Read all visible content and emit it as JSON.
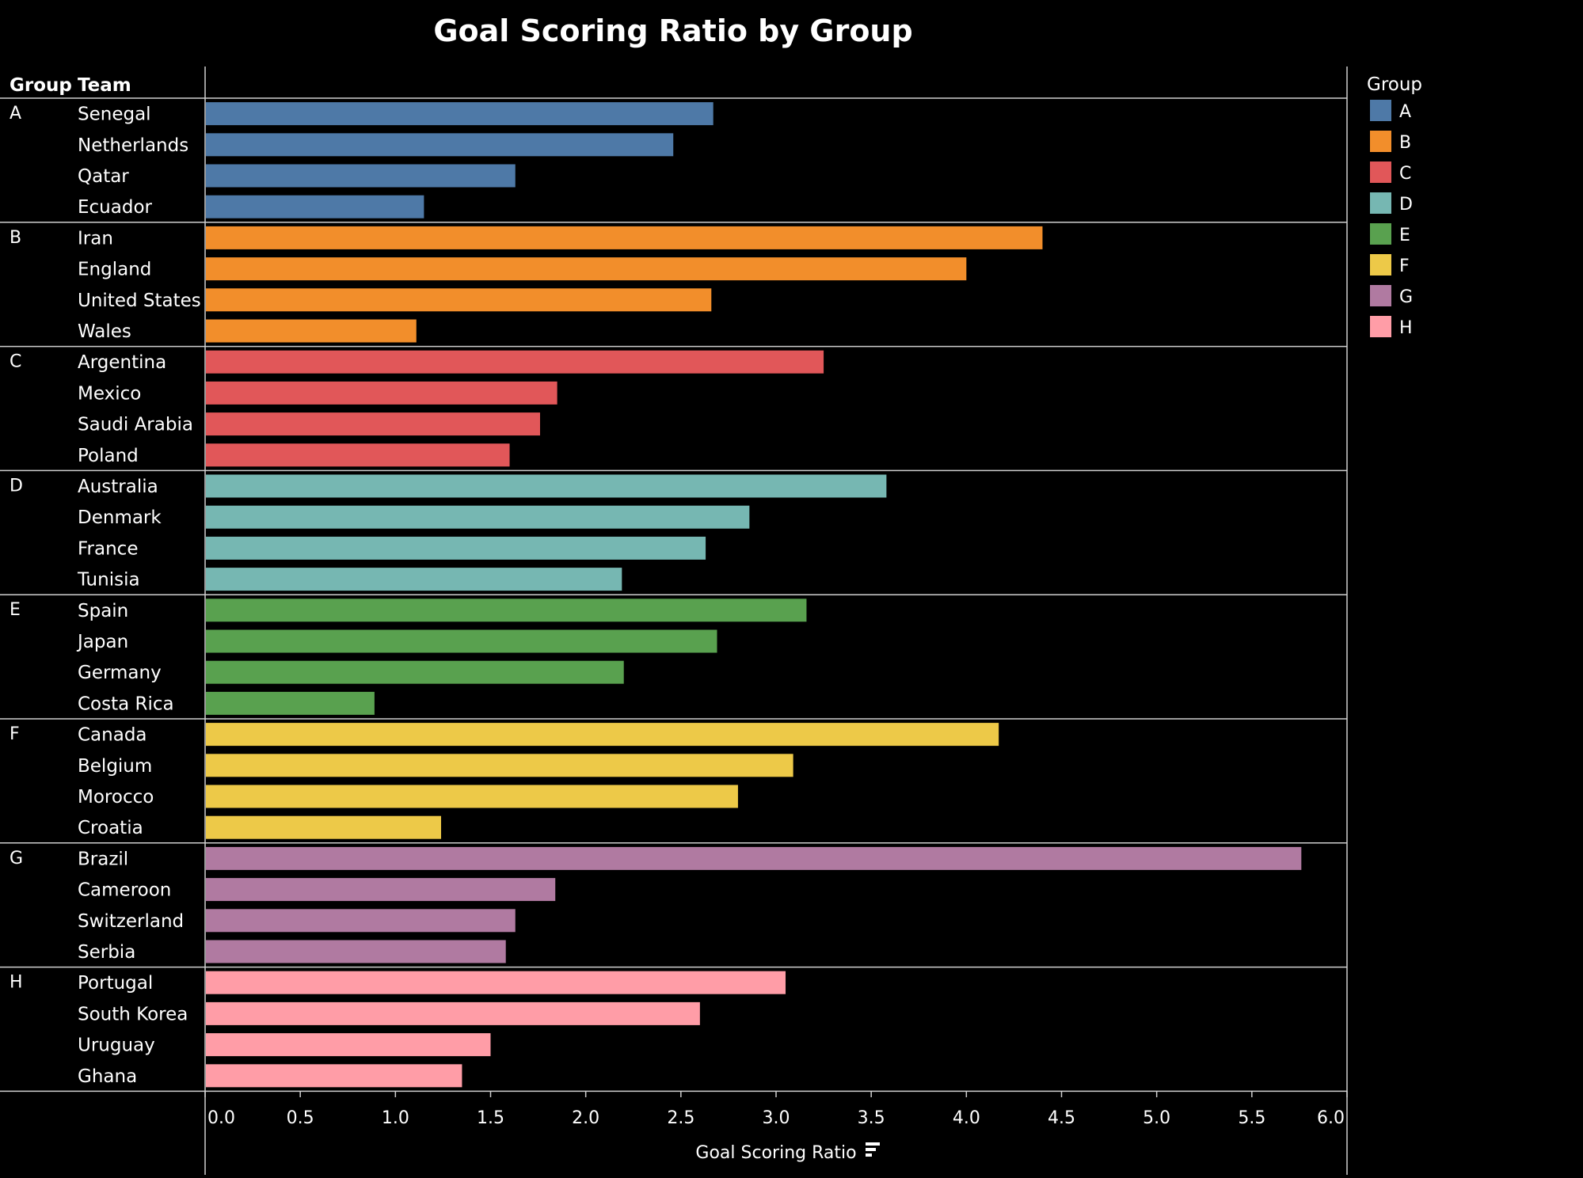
{
  "title": "Goal Scoring Ratio by Group",
  "header": {
    "group_col": "Group",
    "team_col": "Team"
  },
  "legend": {
    "title": "Group",
    "items": [
      {
        "label": "A",
        "color": "#4e79a7"
      },
      {
        "label": "B",
        "color": "#f28e2b"
      },
      {
        "label": "C",
        "color": "#e15759"
      },
      {
        "label": "D",
        "color": "#76b7b2"
      },
      {
        "label": "E",
        "color": "#59a14f"
      },
      {
        "label": "F",
        "color": "#edc948"
      },
      {
        "label": "G",
        "color": "#b07aa1"
      },
      {
        "label": "H",
        "color": "#ff9da7"
      }
    ]
  },
  "chart_data": {
    "type": "bar",
    "orientation": "horizontal",
    "title": "Goal Scoring Ratio by Group",
    "xlabel": "Goal Scoring Ratio",
    "ylabel": "",
    "xlim": [
      0,
      6
    ],
    "xticks": [
      "0.0",
      "0.5",
      "1.0",
      "1.5",
      "2.0",
      "2.5",
      "3.0",
      "3.5",
      "4.0",
      "4.5",
      "5.0",
      "5.5",
      "6.0"
    ],
    "legend_position": "right",
    "grid": false,
    "groups": [
      {
        "name": "A",
        "color": "#4e79a7",
        "teams": [
          {
            "team": "Senegal",
            "value": 2.67
          },
          {
            "team": "Netherlands",
            "value": 2.46
          },
          {
            "team": "Qatar",
            "value": 1.63
          },
          {
            "team": "Ecuador",
            "value": 1.15
          }
        ]
      },
      {
        "name": "B",
        "color": "#f28e2b",
        "teams": [
          {
            "team": "Iran",
            "value": 4.4
          },
          {
            "team": "England",
            "value": 4.0
          },
          {
            "team": "United States",
            "value": 2.66
          },
          {
            "team": "Wales",
            "value": 1.11
          }
        ]
      },
      {
        "name": "C",
        "color": "#e15759",
        "teams": [
          {
            "team": "Argentina",
            "value": 3.25
          },
          {
            "team": "Mexico",
            "value": 1.85
          },
          {
            "team": "Saudi Arabia",
            "value": 1.76
          },
          {
            "team": "Poland",
            "value": 1.6
          }
        ]
      },
      {
        "name": "D",
        "color": "#76b7b2",
        "teams": [
          {
            "team": "Australia",
            "value": 3.58
          },
          {
            "team": "Denmark",
            "value": 2.86
          },
          {
            "team": "France",
            "value": 2.63
          },
          {
            "team": "Tunisia",
            "value": 2.19
          }
        ]
      },
      {
        "name": "E",
        "color": "#59a14f",
        "teams": [
          {
            "team": "Spain",
            "value": 3.16
          },
          {
            "team": "Japan",
            "value": 2.69
          },
          {
            "team": "Germany",
            "value": 2.2
          },
          {
            "team": "Costa Rica",
            "value": 0.89
          }
        ]
      },
      {
        "name": "F",
        "color": "#edc948",
        "teams": [
          {
            "team": "Canada",
            "value": 4.17
          },
          {
            "team": "Belgium",
            "value": 3.09
          },
          {
            "team": "Morocco",
            "value": 2.8
          },
          {
            "team": "Croatia",
            "value": 1.24
          }
        ]
      },
      {
        "name": "G",
        "color": "#b07aa1",
        "teams": [
          {
            "team": "Brazil",
            "value": 5.76
          },
          {
            "team": "Cameroon",
            "value": 1.84
          },
          {
            "team": "Switzerland",
            "value": 1.63
          },
          {
            "team": "Serbia",
            "value": 1.58
          }
        ]
      },
      {
        "name": "H",
        "color": "#ff9da7",
        "teams": [
          {
            "team": "Portugal",
            "value": 3.05
          },
          {
            "team": "South Korea",
            "value": 2.6
          },
          {
            "team": "Uruguay",
            "value": 1.5
          },
          {
            "team": "Ghana",
            "value": 1.35
          }
        ]
      }
    ]
  }
}
